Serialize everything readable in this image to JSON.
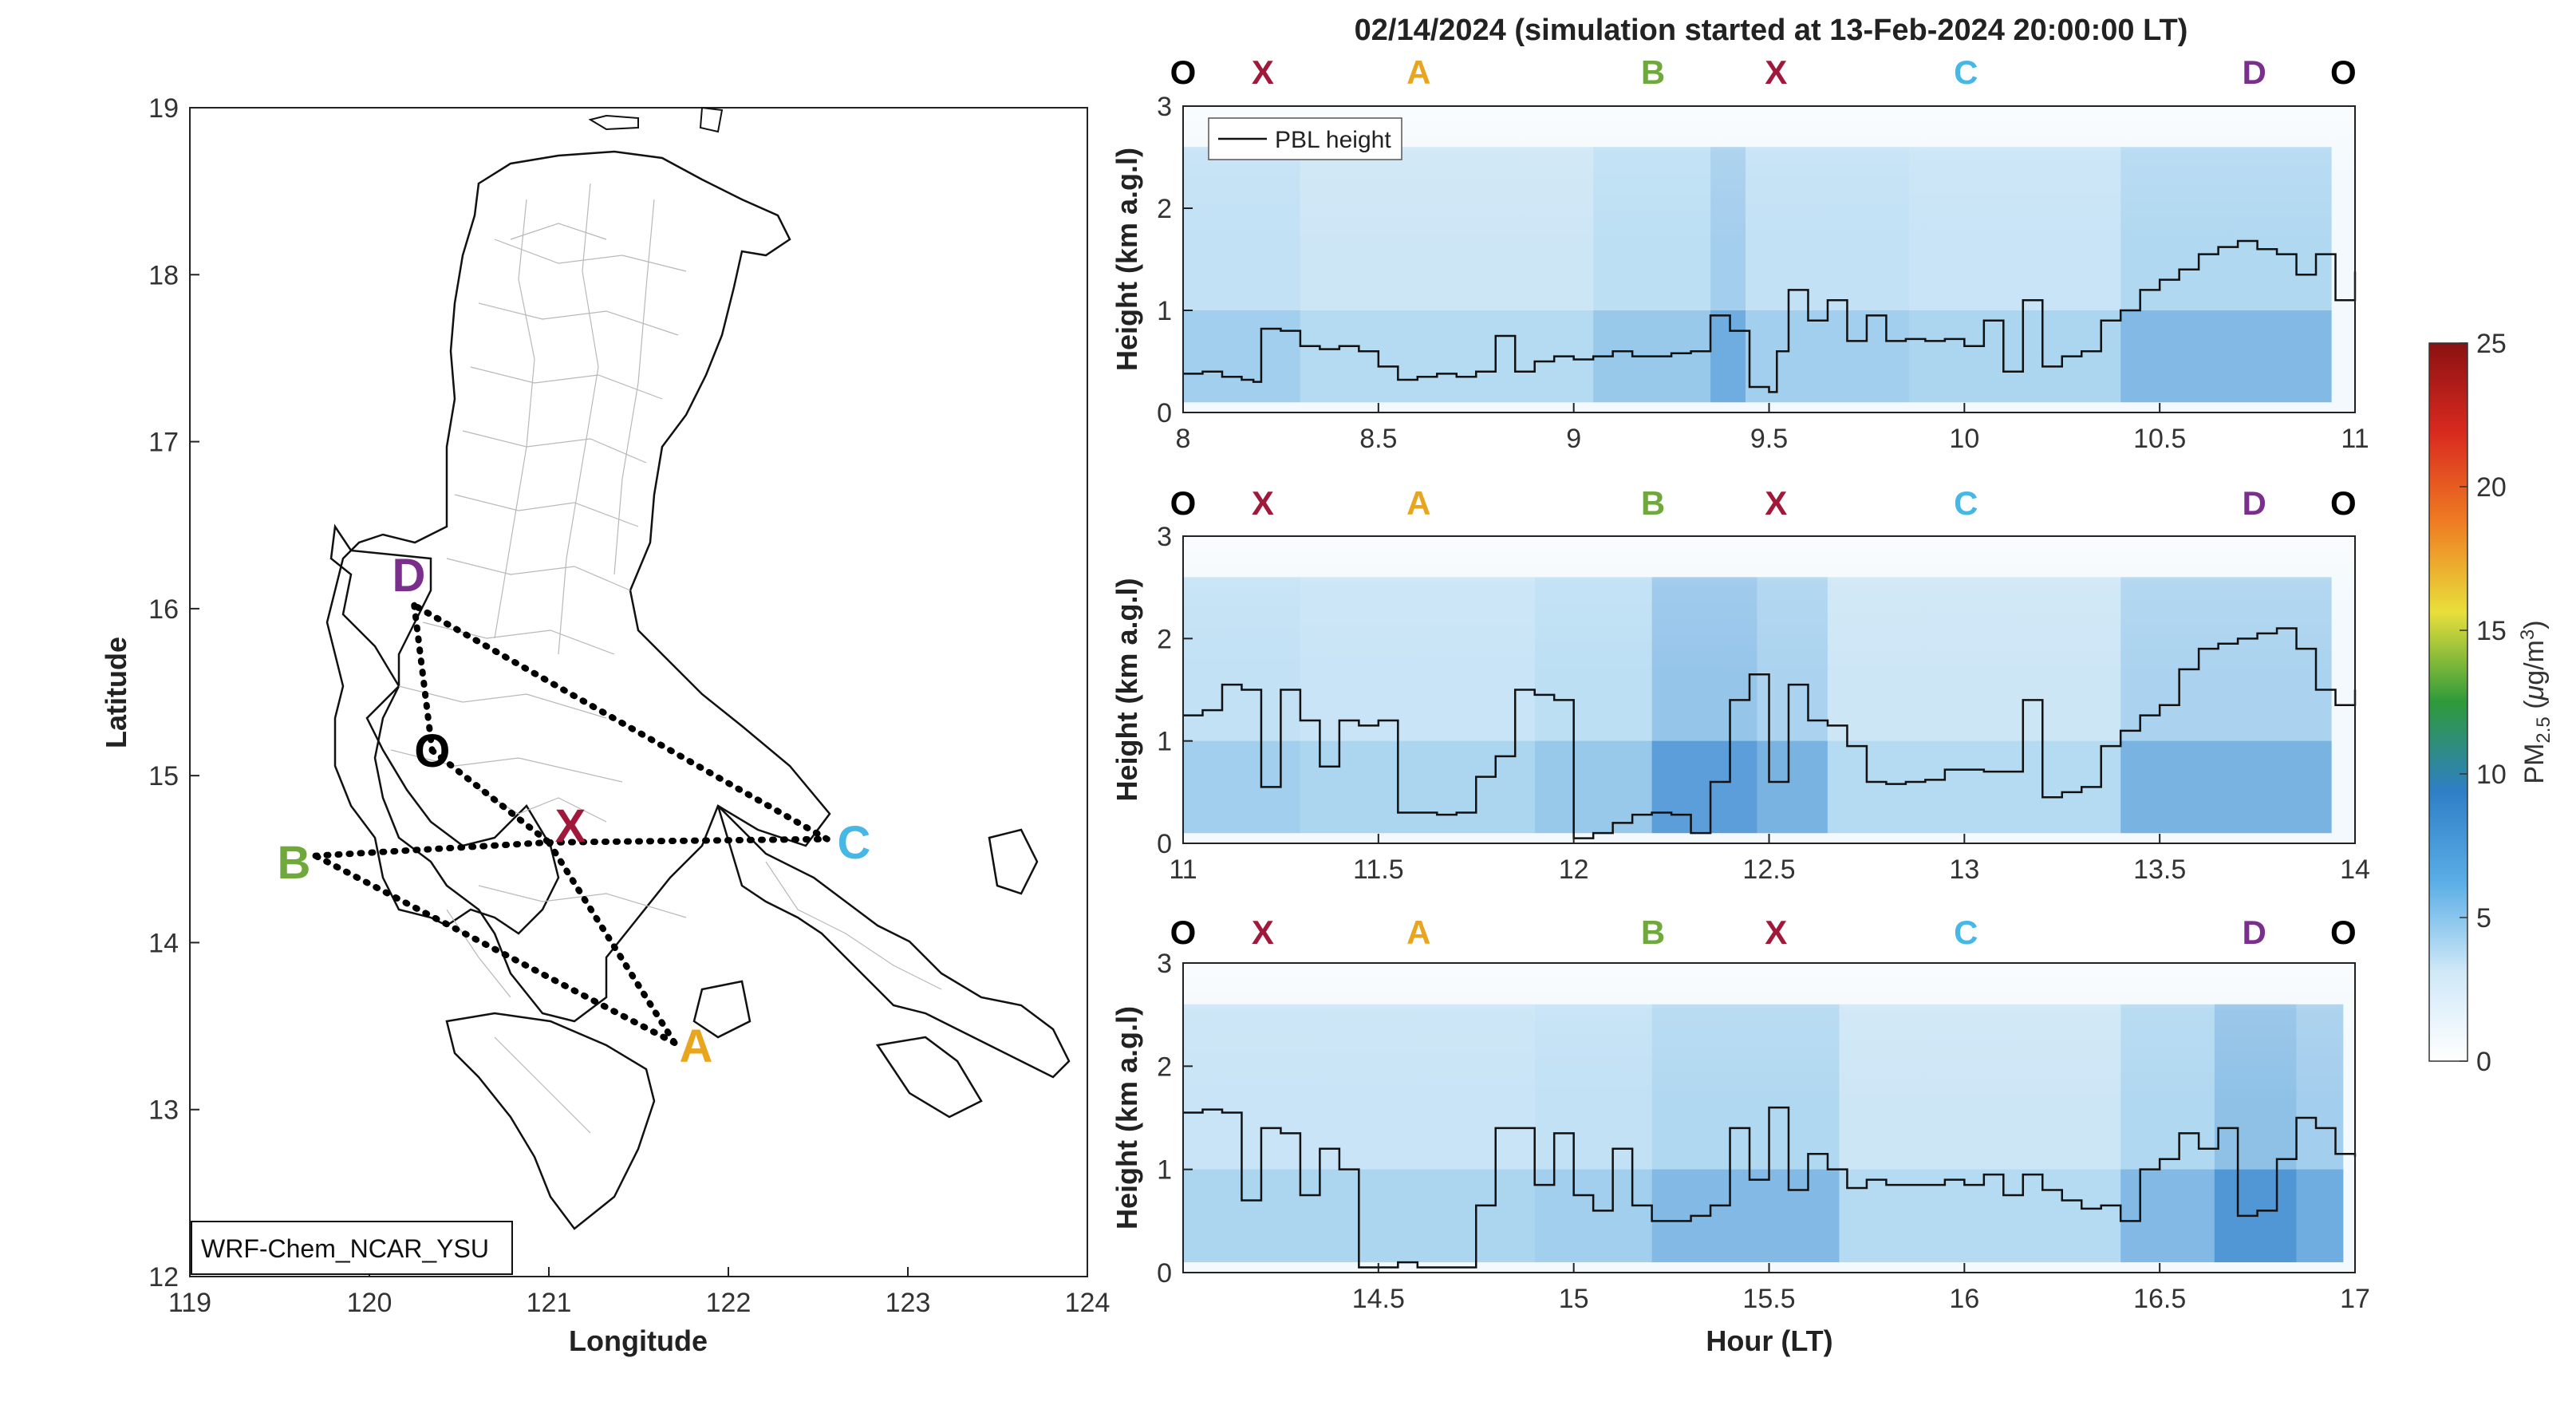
{
  "title": "02/14/2024 (simulation started at 13-Feb-2024 20:00:00 LT)",
  "colors": {
    "O": "#000000",
    "X": "#a0193a",
    "A": "#e8a51d",
    "B": "#6fa83b",
    "C": "#47b8e6",
    "D": "#7a2f8c"
  },
  "map": {
    "model_label": "WRF-Chem_NCAR_YSU",
    "xlabel": "Longitude",
    "ylabel": "Latitude",
    "xlim": [
      119,
      124
    ],
    "ylim": [
      12,
      19
    ],
    "xticks": [
      "119",
      "120",
      "121",
      "122",
      "123",
      "124"
    ],
    "yticks": [
      "12",
      "13",
      "14",
      "15",
      "16",
      "17",
      "18",
      "19"
    ],
    "points": [
      {
        "name": "O",
        "lon": 120.35,
        "lat": 15.15
      },
      {
        "name": "X",
        "lon": 121.0,
        "lat": 14.6
      },
      {
        "name": "A",
        "lon": 121.7,
        "lat": 13.4
      },
      {
        "name": "B",
        "lon": 119.7,
        "lat": 14.52
      },
      {
        "name": "C",
        "lon": 122.55,
        "lat": 14.62
      },
      {
        "name": "D",
        "lon": 120.25,
        "lat": 16.02
      }
    ],
    "labels": [
      {
        "text": "O",
        "lon": 120.35,
        "lat": 15.15
      },
      {
        "text": "X",
        "lon": 121.12,
        "lat": 14.7
      },
      {
        "text": "A",
        "lon": 121.82,
        "lat": 13.38
      },
      {
        "text": "B",
        "lon": 119.58,
        "lat": 14.48
      },
      {
        "text": "C",
        "lon": 122.7,
        "lat": 14.6
      },
      {
        "text": "D",
        "lon": 120.22,
        "lat": 16.2
      }
    ],
    "route": [
      "D",
      "O",
      "X",
      "A",
      "B",
      "X",
      "C",
      "D"
    ]
  },
  "colorbar": {
    "label": "PM2.5 (μg/m3)",
    "ticks": [
      "0",
      "5",
      "10",
      "15",
      "20",
      "25"
    ],
    "range": [
      0,
      25
    ],
    "stops": [
      "#ffffff",
      "#cfe8f7",
      "#5aaee6",
      "#2e7fc6",
      "#2e9a3a",
      "#e9df3b",
      "#ef7d23",
      "#d92a1f",
      "#8b1112"
    ]
  },
  "chart_data": {
    "type": "heatmap",
    "ylabel": "Height (km a.g.l)",
    "xlabel": "Hour (LT)",
    "legend": [
      "PBL height"
    ],
    "segment_labels": [
      [
        "O",
        "X",
        "A",
        "B",
        "X",
        "C",
        "D",
        "O"
      ],
      [
        "O",
        "X",
        "A",
        "B",
        "X",
        "C",
        "D",
        "O"
      ],
      [
        "O",
        "X",
        "A",
        "B",
        "X",
        "C",
        "D",
        "O"
      ]
    ],
    "panels": [
      {
        "xlim": [
          8,
          11
        ],
        "ylim": [
          0,
          3
        ],
        "xticks": [
          "8",
          "8.5",
          "9",
          "9.5",
          "10",
          "10.5",
          "11"
        ],
        "yticks": [
          "0",
          "1",
          "2",
          "3"
        ],
        "pbl_height": {
          "x": [
            8.0,
            8.05,
            8.1,
            8.15,
            8.18,
            8.2,
            8.25,
            8.3,
            8.35,
            8.4,
            8.45,
            8.5,
            8.55,
            8.6,
            8.65,
            8.7,
            8.75,
            8.8,
            8.85,
            8.9,
            8.95,
            9.0,
            9.05,
            9.1,
            9.15,
            9.2,
            9.25,
            9.3,
            9.35,
            9.4,
            9.45,
            9.5,
            9.52,
            9.55,
            9.58,
            9.6,
            9.65,
            9.7,
            9.75,
            9.8,
            9.85,
            9.9,
            9.95,
            10.0,
            10.05,
            10.1,
            10.15,
            10.2,
            10.25,
            10.3,
            10.35,
            10.4,
            10.45,
            10.5,
            10.55,
            10.6,
            10.65,
            10.7,
            10.75,
            10.8,
            10.85,
            10.9,
            10.95,
            11.0
          ],
          "y": [
            0.38,
            0.4,
            0.35,
            0.32,
            0.3,
            0.82,
            0.8,
            0.65,
            0.62,
            0.65,
            0.6,
            0.45,
            0.32,
            0.35,
            0.38,
            0.35,
            0.4,
            0.75,
            0.4,
            0.5,
            0.55,
            0.52,
            0.55,
            0.6,
            0.55,
            0.55,
            0.58,
            0.6,
            0.95,
            0.8,
            0.25,
            0.2,
            0.6,
            1.2,
            1.2,
            0.9,
            1.1,
            0.7,
            0.95,
            0.7,
            0.72,
            0.7,
            0.72,
            0.65,
            0.9,
            0.4,
            1.1,
            0.45,
            0.55,
            0.6,
            0.9,
            1.0,
            1.2,
            1.3,
            1.4,
            1.55,
            1.62,
            1.68,
            1.6,
            1.55,
            1.35,
            1.55,
            1.1,
            1.38
          ]
        }
      },
      {
        "xlim": [
          11,
          14
        ],
        "ylim": [
          0,
          3
        ],
        "xticks": [
          "11",
          "11.5",
          "12",
          "12.5",
          "13",
          "13.5",
          "14"
        ],
        "yticks": [
          "0",
          "1",
          "2",
          "3"
        ],
        "pbl_height": {
          "x": [
            11.0,
            11.05,
            11.1,
            11.15,
            11.2,
            11.25,
            11.3,
            11.35,
            11.4,
            11.45,
            11.5,
            11.55,
            11.6,
            11.65,
            11.7,
            11.75,
            11.8,
            11.85,
            11.9,
            11.95,
            12.0,
            12.05,
            12.1,
            12.15,
            12.2,
            12.25,
            12.3,
            12.35,
            12.4,
            12.45,
            12.5,
            12.55,
            12.6,
            12.65,
            12.7,
            12.75,
            12.8,
            12.85,
            12.9,
            12.95,
            13.0,
            13.05,
            13.1,
            13.15,
            13.2,
            13.25,
            13.3,
            13.35,
            13.4,
            13.45,
            13.5,
            13.55,
            13.6,
            13.65,
            13.7,
            13.75,
            13.8,
            13.85,
            13.9,
            13.95,
            14.0
          ],
          "y": [
            1.25,
            1.3,
            1.55,
            1.5,
            0.55,
            1.5,
            1.2,
            0.75,
            1.2,
            1.15,
            1.2,
            0.3,
            0.3,
            0.28,
            0.3,
            0.65,
            0.85,
            1.5,
            1.45,
            1.4,
            0.05,
            0.1,
            0.2,
            0.28,
            0.3,
            0.28,
            0.1,
            0.6,
            1.4,
            1.65,
            0.6,
            1.55,
            1.2,
            1.15,
            0.95,
            0.6,
            0.58,
            0.6,
            0.62,
            0.72,
            0.72,
            0.7,
            0.7,
            1.4,
            0.45,
            0.5,
            0.55,
            0.95,
            1.1,
            1.25,
            1.35,
            1.7,
            1.9,
            1.95,
            2.0,
            2.05,
            2.1,
            1.9,
            1.5,
            1.35,
            1.5
          ]
        }
      },
      {
        "xlim": [
          14,
          17
        ],
        "ylim": [
          0,
          3
        ],
        "xticks": [
          "14.5",
          "15",
          "15.5",
          "16",
          "16.5",
          "17"
        ],
        "yticks": [
          "0",
          "1",
          "2",
          "3"
        ],
        "pbl_height": {
          "x": [
            14.0,
            14.05,
            14.1,
            14.15,
            14.2,
            14.25,
            14.3,
            14.35,
            14.4,
            14.45,
            14.5,
            14.55,
            14.6,
            14.65,
            14.7,
            14.75,
            14.8,
            14.85,
            14.9,
            14.95,
            15.0,
            15.05,
            15.1,
            15.15,
            15.2,
            15.25,
            15.3,
            15.35,
            15.4,
            15.45,
            15.5,
            15.55,
            15.6,
            15.65,
            15.7,
            15.75,
            15.8,
            15.85,
            15.9,
            15.95,
            16.0,
            16.05,
            16.1,
            16.15,
            16.2,
            16.25,
            16.3,
            16.35,
            16.4,
            16.45,
            16.5,
            16.55,
            16.6,
            16.65,
            16.7,
            16.75,
            16.8,
            16.85,
            16.9,
            16.95,
            17.0
          ],
          "y": [
            1.55,
            1.58,
            1.55,
            0.7,
            1.4,
            1.35,
            0.75,
            1.2,
            1.0,
            0.05,
            0.05,
            0.1,
            0.05,
            0.05,
            0.05,
            0.65,
            1.4,
            1.4,
            0.85,
            1.35,
            0.75,
            0.6,
            1.2,
            0.65,
            0.5,
            0.5,
            0.55,
            0.65,
            1.4,
            0.9,
            1.6,
            0.8,
            1.15,
            1.0,
            0.82,
            0.9,
            0.85,
            0.85,
            0.85,
            0.9,
            0.85,
            0.95,
            0.75,
            0.95,
            0.8,
            0.7,
            0.62,
            0.65,
            0.5,
            1.0,
            1.1,
            1.35,
            1.2,
            1.4,
            0.55,
            0.6,
            1.1,
            1.5,
            1.4,
            1.15,
            1.12
          ]
        }
      }
    ]
  }
}
